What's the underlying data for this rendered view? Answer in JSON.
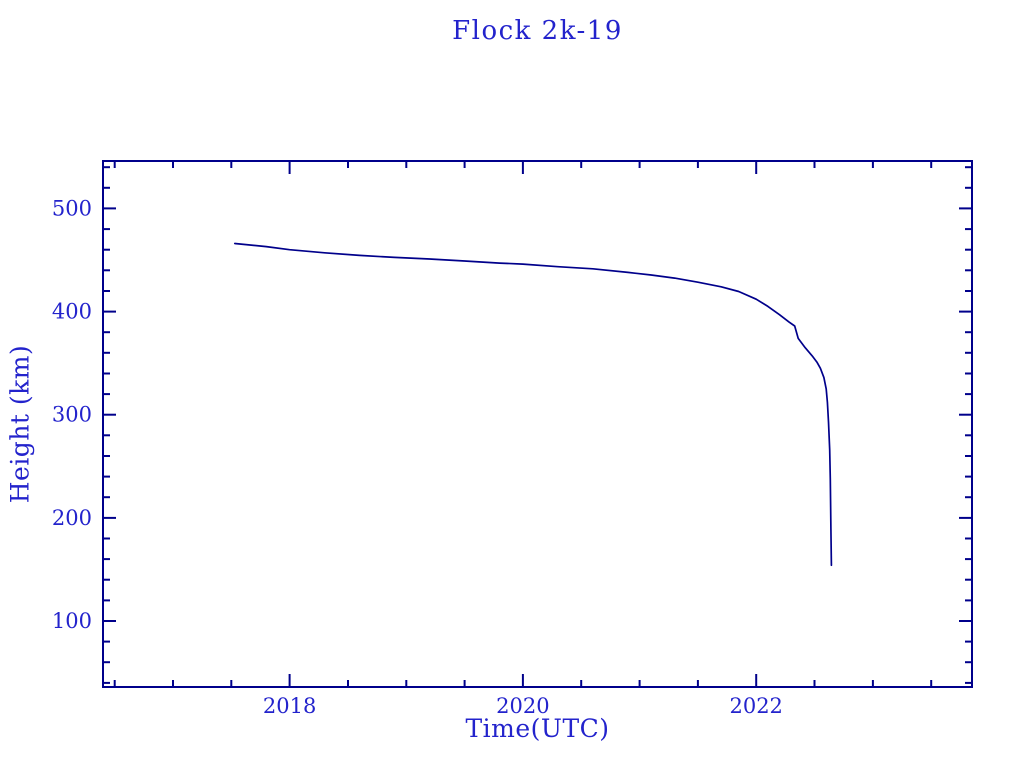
{
  "window": {
    "background": "#ffffff"
  },
  "chart_data": {
    "type": "line",
    "title": "Flock 2k-19",
    "xlabel": "Time(UTC)",
    "ylabel": "Height (km)",
    "grid": false,
    "legend": "none",
    "frame": "closed box with inward ticks on all four sides",
    "xlim": [
      2016.4,
      2023.85
    ],
    "ylim": [
      36,
      546
    ],
    "x_major_ticks": [
      {
        "v": 2018,
        "label": "2018"
      },
      {
        "v": 2020,
        "label": "2020"
      },
      {
        "v": 2022,
        "label": "2022"
      }
    ],
    "y_major_ticks": [
      {
        "v": 100,
        "label": "100"
      },
      {
        "v": 200,
        "label": "200"
      },
      {
        "v": 300,
        "label": "300"
      },
      {
        "v": 400,
        "label": "400"
      },
      {
        "v": 500,
        "label": "500"
      }
    ],
    "x_minor_step": 0.5,
    "y_minor_step": 20,
    "colors": {
      "curve": "#00008b",
      "frame": "#00008b",
      "text": "#2323cc"
    },
    "series": [
      {
        "name": "Flock 2k-19 orbital height",
        "points": [
          [
            2017.53,
            466
          ],
          [
            2017.8,
            463
          ],
          [
            2018.0,
            460
          ],
          [
            2018.3,
            457
          ],
          [
            2018.6,
            454.5
          ],
          [
            2018.9,
            452.5
          ],
          [
            2019.2,
            451
          ],
          [
            2019.5,
            449
          ],
          [
            2019.8,
            447
          ],
          [
            2020.0,
            446
          ],
          [
            2020.3,
            443.5
          ],
          [
            2020.6,
            441.5
          ],
          [
            2020.9,
            438
          ],
          [
            2021.1,
            435.5
          ],
          [
            2021.3,
            432.5
          ],
          [
            2021.5,
            428.5
          ],
          [
            2021.7,
            424
          ],
          [
            2021.85,
            419.5
          ],
          [
            2022.0,
            412
          ],
          [
            2022.1,
            405
          ],
          [
            2022.2,
            397
          ],
          [
            2022.28,
            390
          ],
          [
            2022.33,
            386
          ],
          [
            2022.36,
            374
          ],
          [
            2022.42,
            365
          ],
          [
            2022.48,
            357
          ],
          [
            2022.52,
            351
          ],
          [
            2022.55,
            345
          ],
          [
            2022.58,
            336
          ],
          [
            2022.6,
            325
          ],
          [
            2022.61,
            312
          ],
          [
            2022.62,
            293
          ],
          [
            2022.63,
            266
          ],
          [
            2022.635,
            238
          ],
          [
            2022.64,
            190
          ],
          [
            2022.645,
            154
          ]
        ]
      }
    ]
  }
}
